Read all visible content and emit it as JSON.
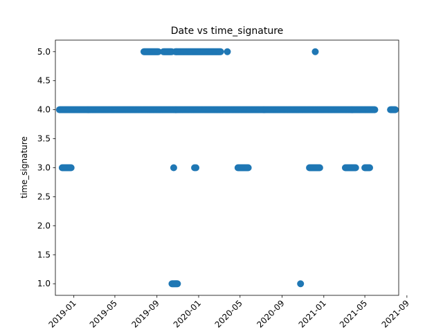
{
  "chart_data": {
    "type": "scatter",
    "title": "Date vs time_signature",
    "xlabel": "",
    "ylabel": "time_signature",
    "xlim": [
      "2018-11-08",
      "2021-08-08"
    ],
    "ylim": [
      0.8,
      5.2
    ],
    "x_ticks": [
      "2019-01",
      "2019-05",
      "2019-09",
      "2020-01",
      "2020-05",
      "2020-09",
      "2021-01",
      "2021-05",
      "2021-09"
    ],
    "y_ticks": [
      "1.0",
      "1.5",
      "2.0",
      "2.5",
      "3.0",
      "3.5",
      "4.0",
      "4.5",
      "5.0"
    ],
    "grid": false,
    "marker_color": "#1f77b4",
    "series": [
      {
        "values_by_level": [
          {
            "y": 4,
            "ranges": [
              [
                "2018-11-20",
                "2021-05-31"
              ],
              [
                "2021-07-15",
                "2021-07-30"
              ]
            ]
          },
          {
            "y": 5,
            "ranges": [
              [
                "2019-07-25",
                "2019-09-05"
              ],
              [
                "2019-09-20",
                "2019-10-15"
              ],
              [
                "2019-10-25",
                "2020-03-05"
              ]
            ],
            "points": [
              "2020-03-25",
              "2020-12-07"
            ]
          },
          {
            "y": 3,
            "ranges": [
              [
                "2018-11-28",
                "2018-12-25"
              ],
              [
                "2020-04-25",
                "2020-05-25"
              ],
              [
                "2020-11-20",
                "2020-12-20"
              ],
              [
                "2021-03-05",
                "2021-04-05"
              ],
              [
                "2021-05-01",
                "2021-05-15"
              ]
            ],
            "points": [
              "2019-10-20",
              "2019-12-20",
              "2019-12-24"
            ]
          },
          {
            "y": 1,
            "ranges": [
              [
                "2019-10-15",
                "2019-11-01"
              ]
            ],
            "points": [
              "2020-10-25"
            ]
          }
        ]
      }
    ]
  }
}
